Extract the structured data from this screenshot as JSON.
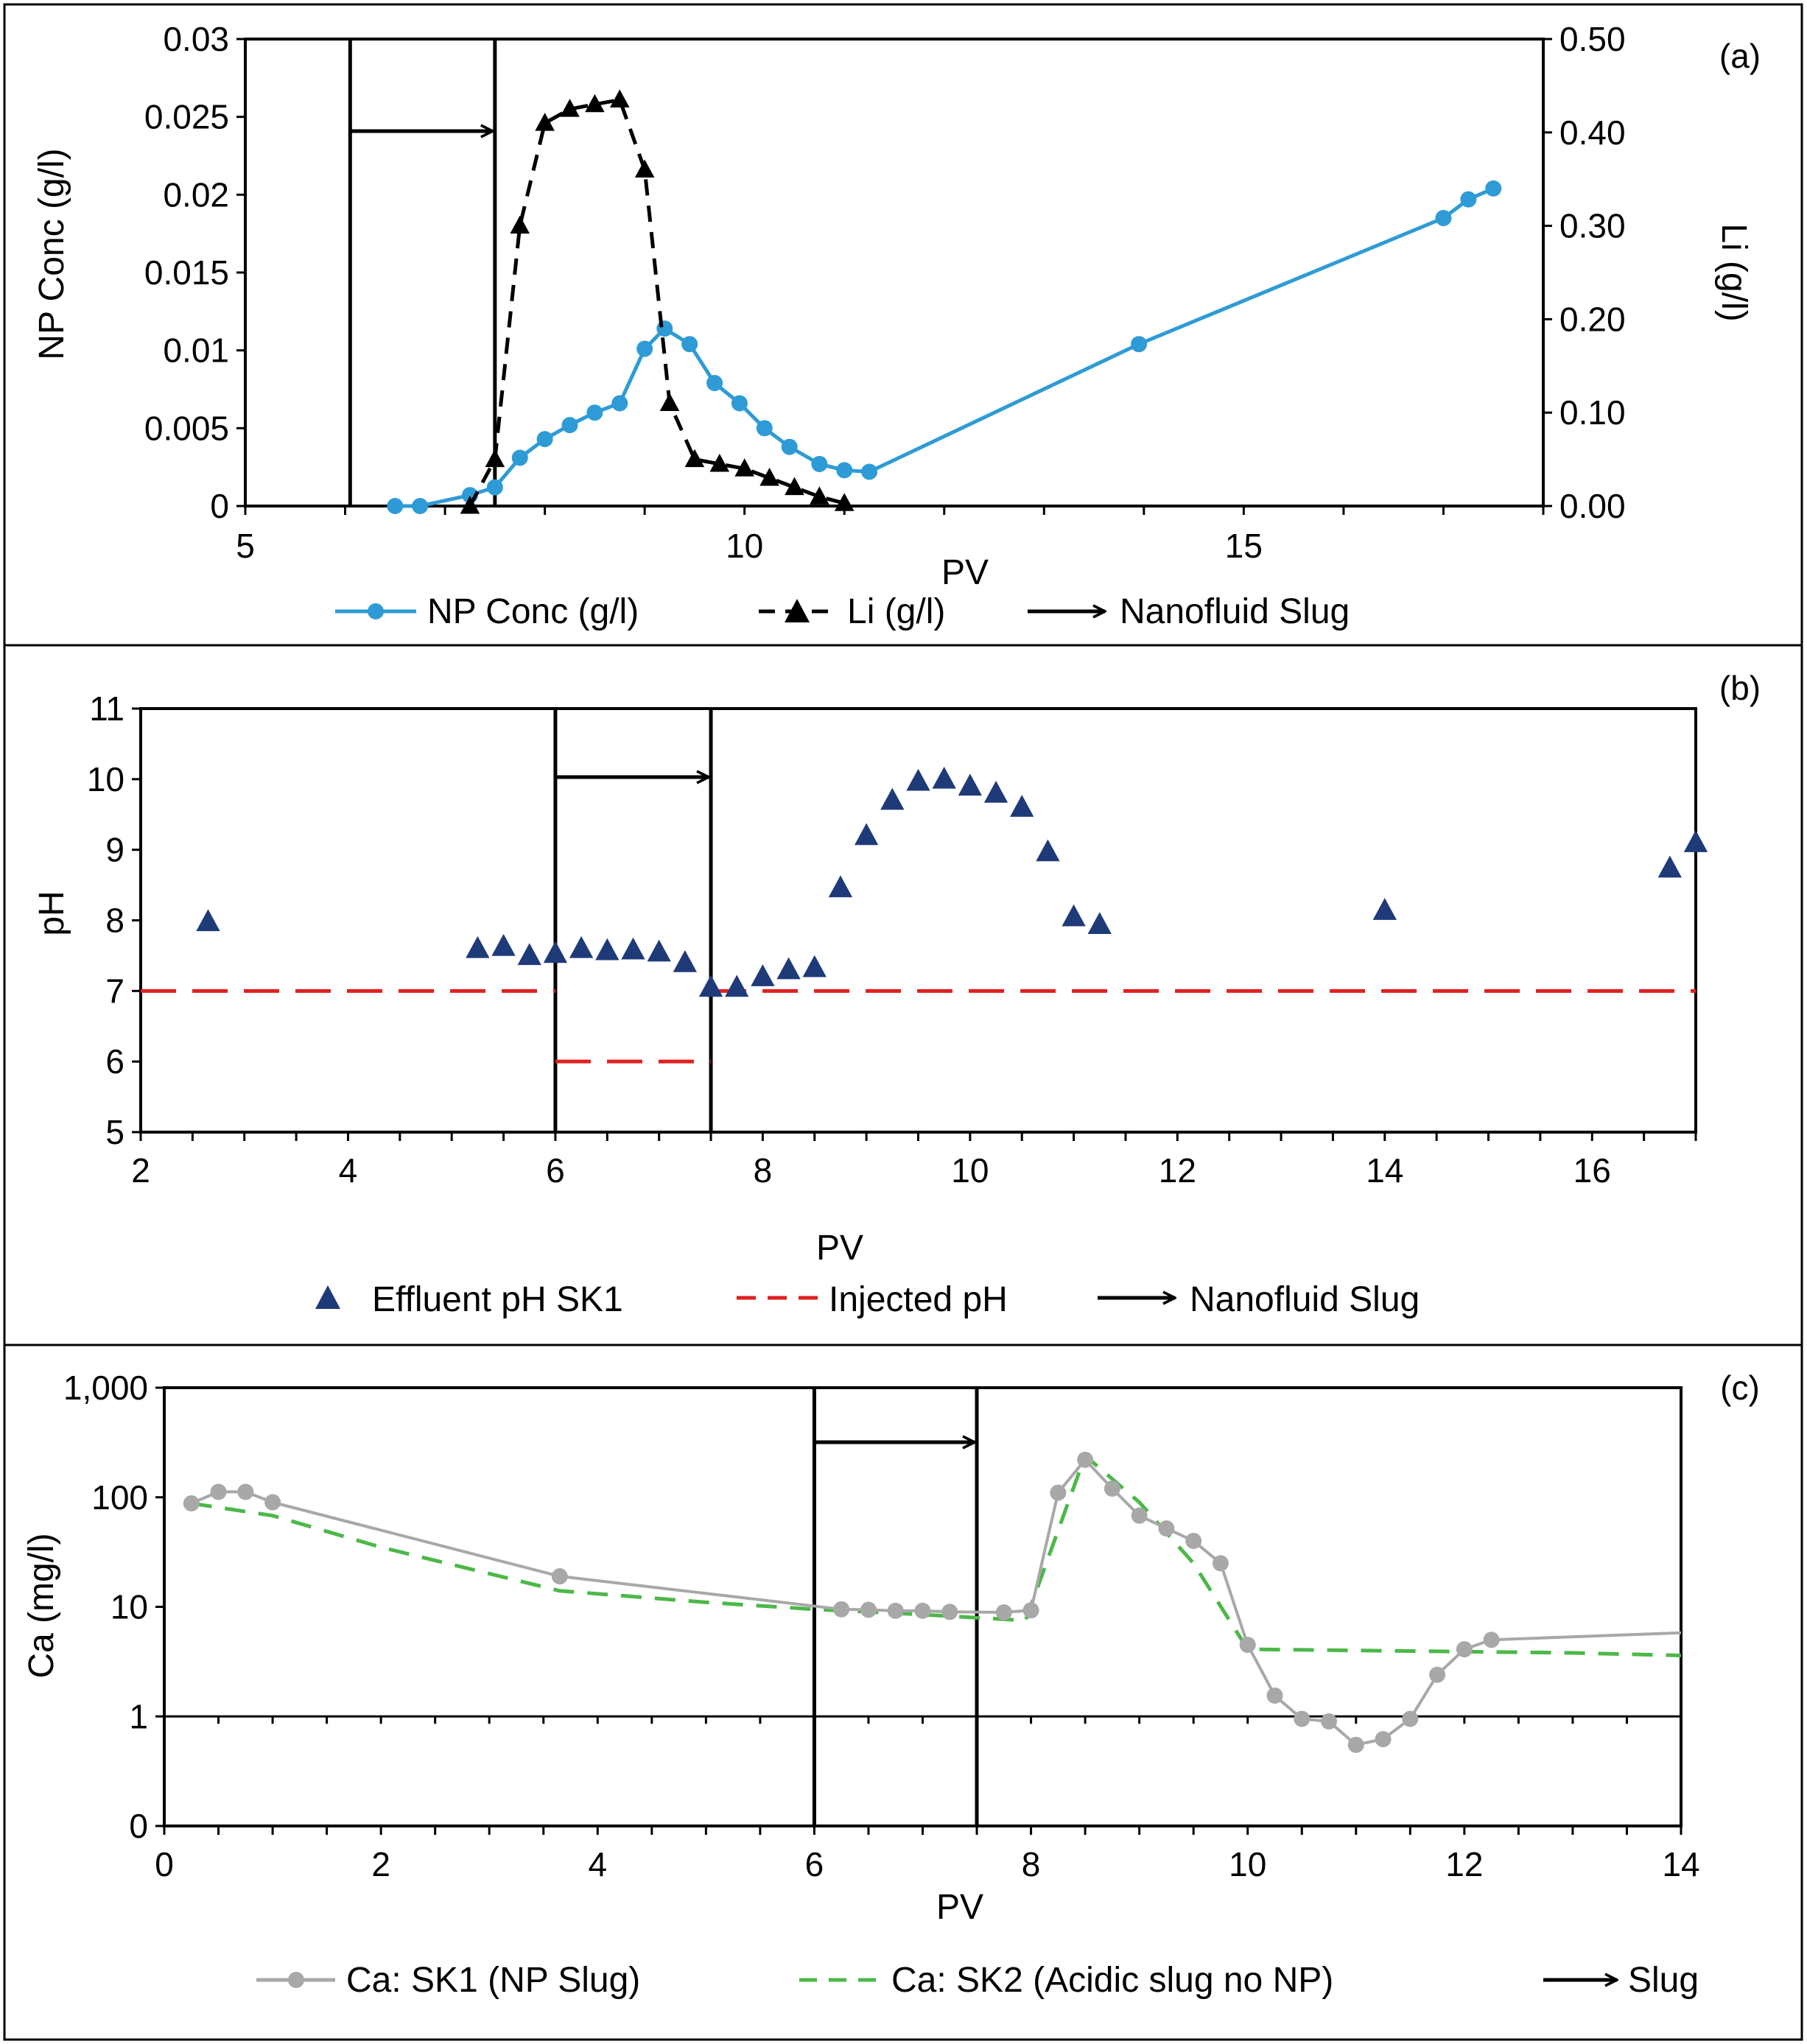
{
  "chart_data": [
    {
      "type": "line",
      "panel_label": "(a)",
      "xlabel": "PV",
      "ylabel": "NP Conc (g/l)",
      "y2label": "Li (g/l)",
      "xlim": [
        5,
        18
      ],
      "xticks": [
        "5",
        "10",
        "15"
      ],
      "xtick_values": [
        5,
        10,
        15
      ],
      "ylim": [
        0,
        0.03
      ],
      "yticks": [
        "0",
        "0.005",
        "0.01",
        "0.015",
        "0.02",
        "0.025",
        "0.03"
      ],
      "y2lim": [
        0,
        0.5
      ],
      "y2ticks": [
        "0.00",
        "0.10",
        "0.20",
        "0.30",
        "0.40",
        "0.50"
      ],
      "slug_start": 6.05,
      "slug_end": 7.5,
      "series": [
        {
          "name": "NP Conc (g/l)",
          "axis": "left",
          "color": "#2E9BD6",
          "style": "solid-circle",
          "x": [
            6.5,
            6.75,
            7.25,
            7.5,
            7.75,
            8.0,
            8.25,
            8.5,
            8.75,
            9.0,
            9.2,
            9.45,
            9.7,
            9.95,
            10.2,
            10.45,
            10.75,
            11.0,
            11.25,
            13.95,
            17.0,
            17.25,
            17.5
          ],
          "y": [
            0.0,
            0.0,
            0.0007,
            0.0012,
            0.0031,
            0.0043,
            0.0052,
            0.006,
            0.0066,
            0.0101,
            0.0114,
            0.0104,
            0.0079,
            0.0066,
            0.005,
            0.0038,
            0.0027,
            0.0023,
            0.0022,
            0.0104,
            0.0185,
            0.0197,
            0.0204
          ]
        },
        {
          "name": "Li (g/l)",
          "axis": "right",
          "color": "#000000",
          "style": "dashed-triangle",
          "x": [
            7.25,
            7.5,
            7.75,
            8.0,
            8.25,
            8.5,
            8.75,
            9.0,
            9.25,
            9.5,
            9.75,
            10.0,
            10.25,
            10.5,
            10.75,
            11.0
          ],
          "y": [
            0.0,
            0.05,
            0.3,
            0.41,
            0.425,
            0.43,
            0.435,
            0.36,
            0.11,
            0.05,
            0.045,
            0.04,
            0.03,
            0.02,
            0.01,
            0.003
          ]
        }
      ],
      "legend": [
        "NP Conc (g/l)",
        "Li (g/l)",
        "Nanofluid Slug"
      ]
    },
    {
      "type": "scatter",
      "panel_label": "(b)",
      "xlabel": "PV",
      "ylabel": "pH",
      "xlim": [
        2,
        17
      ],
      "xticks": [
        "2",
        "4",
        "6",
        "8",
        "10",
        "12",
        "14",
        "16"
      ],
      "xtick_values": [
        2,
        4,
        6,
        8,
        10,
        12,
        14,
        16
      ],
      "ylim": [
        5,
        11
      ],
      "yticks": [
        "5",
        "6",
        "7",
        "8",
        "9",
        "10",
        "11"
      ],
      "slug_start": 6,
      "slug_end": 7.5,
      "series": [
        {
          "name": "Effluent pH SK1",
          "color": "#1F3A78",
          "style": "triangle",
          "x": [
            2.65,
            5.25,
            5.5,
            5.75,
            6.0,
            6.25,
            6.5,
            6.75,
            7.0,
            7.25,
            7.5,
            7.75,
            8.0,
            8.25,
            8.5,
            8.75,
            9.0,
            9.25,
            9.5,
            9.75,
            10.0,
            10.25,
            10.5,
            10.75,
            11.0,
            11.25,
            14.0,
            16.75,
            17.0
          ],
          "y": [
            7.98,
            7.6,
            7.63,
            7.5,
            7.53,
            7.6,
            7.57,
            7.58,
            7.55,
            7.4,
            7.05,
            7.05,
            7.2,
            7.3,
            7.33,
            8.46,
            9.2,
            9.7,
            9.97,
            10.0,
            9.9,
            9.8,
            9.6,
            8.97,
            8.05,
            7.94,
            8.14,
            8.74,
            9.1
          ]
        },
        {
          "name": "Injected pH",
          "color": "#E02020",
          "style": "dashed",
          "segments": [
            {
              "x": [
                2,
                6
              ],
              "y": [
                7,
                7
              ]
            },
            {
              "x": [
                6,
                7.5
              ],
              "y": [
                6,
                6
              ]
            },
            {
              "x": [
                7.5,
                17
              ],
              "y": [
                7,
                7
              ]
            }
          ]
        }
      ],
      "legend": [
        "Effluent pH SK1",
        "Injected pH",
        "Nanofluid Slug"
      ]
    },
    {
      "type": "line",
      "panel_label": "(c)",
      "xlabel": "PV",
      "ylabel": "Ca (mg/l)",
      "xlim": [
        0,
        14
      ],
      "xticks": [
        "0",
        "2",
        "4",
        "6",
        "8",
        "10",
        "12",
        "14"
      ],
      "xtick_values": [
        0,
        2,
        4,
        6,
        8,
        10,
        12,
        14
      ],
      "yscale": "log",
      "yticks": [
        "0",
        "1",
        "10",
        "100",
        "1,000"
      ],
      "ytick_values": [
        0.1,
        1,
        10,
        100,
        1000
      ],
      "slug_start": 6,
      "slug_end": 7.5,
      "series": [
        {
          "name": "Ca: SK1 (NP Slug)",
          "color": "#A8A8A8",
          "style": "solid-circle",
          "x": [
            0.25,
            0.5,
            0.75,
            1.0,
            3.65,
            6.25,
            6.5,
            6.75,
            7.0,
            7.25,
            7.75,
            8.0,
            8.25,
            8.5,
            8.75,
            9.0,
            9.25,
            9.5,
            9.75,
            10.0,
            10.25,
            10.5,
            10.75,
            11.0,
            11.25,
            11.5,
            11.75,
            12.0,
            12.25,
            14.0
          ],
          "y": [
            88,
            112,
            112,
            90,
            19,
            9.5,
            9.4,
            9.2,
            9.2,
            9.0,
            8.9,
            9.3,
            110,
            220,
            120,
            68,
            52,
            40,
            25,
            4.5,
            1.55,
            0.95,
            0.9,
            0.55,
            0.62,
            0.95,
            2.4,
            4.1,
            5.0,
            5.8
          ],
          "markers_until_index": 28
        },
        {
          "name": "Ca: SK2 (Acidic slug no NP)",
          "color": "#4CB848",
          "style": "dashed",
          "x": [
            0.25,
            1.0,
            2.0,
            3.65,
            5.0,
            6.0,
            7.0,
            7.95,
            8.5,
            9.0,
            9.5,
            10.0,
            11.0,
            12.0,
            13.0,
            14.0
          ],
          "y": [
            88,
            68,
            35,
            14,
            11,
            9.5,
            8.5,
            7.5,
            240,
            90,
            25,
            4.1,
            4.0,
            3.9,
            3.8,
            3.6
          ]
        }
      ],
      "legend": [
        "Ca: SK1 (NP Slug)",
        "Ca: SK2 (Acidic slug no NP)",
        "Slug"
      ]
    }
  ]
}
